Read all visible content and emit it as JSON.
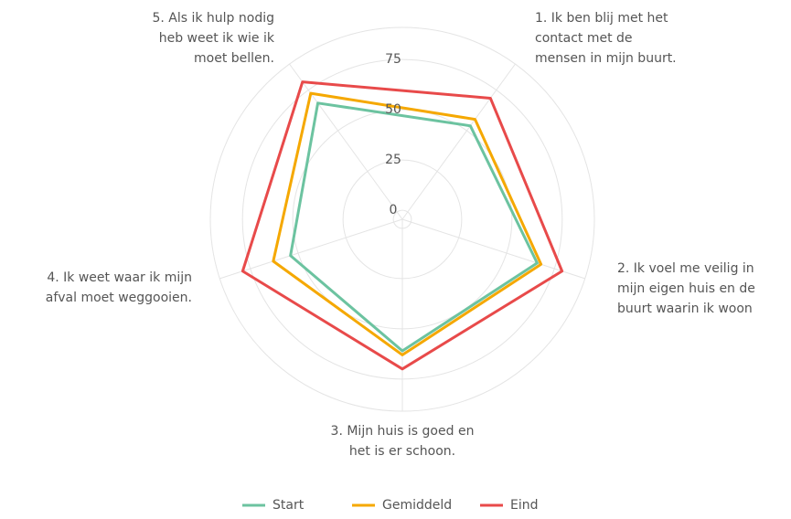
{
  "chart_data": {
    "type": "radar",
    "categories": [
      [
        "1. Ik ben blij met het",
        "contact met de",
        "mensen in mijn buurt."
      ],
      [
        "2. Ik voel me veilig in",
        "mijn eigen huis en de",
        "buurt waarin ik woon"
      ],
      [
        "3. Mijn huis is goed en",
        "het is er schoon."
      ],
      [
        "4. Ik weet waar ik mijn",
        "afval moet weggooien."
      ],
      [
        "5. Als ik hulp nodig",
        "heb weet ik wie ik",
        "moet bellen."
      ]
    ],
    "series": [
      {
        "name": "Start",
        "color": "#6cc3a0",
        "values": [
          53,
          66,
          61,
          54,
          67
        ]
      },
      {
        "name": "Gemiddeld",
        "color": "#f5a800",
        "values": [
          57,
          68,
          63,
          63,
          73
        ]
      },
      {
        "name": "Eind",
        "color": "#e84a4a",
        "values": [
          70,
          79,
          70,
          79,
          80
        ]
      }
    ],
    "rlim": [
      -4.5,
      91
    ],
    "rticks": [
      0,
      25,
      50,
      75
    ],
    "grid": true
  }
}
